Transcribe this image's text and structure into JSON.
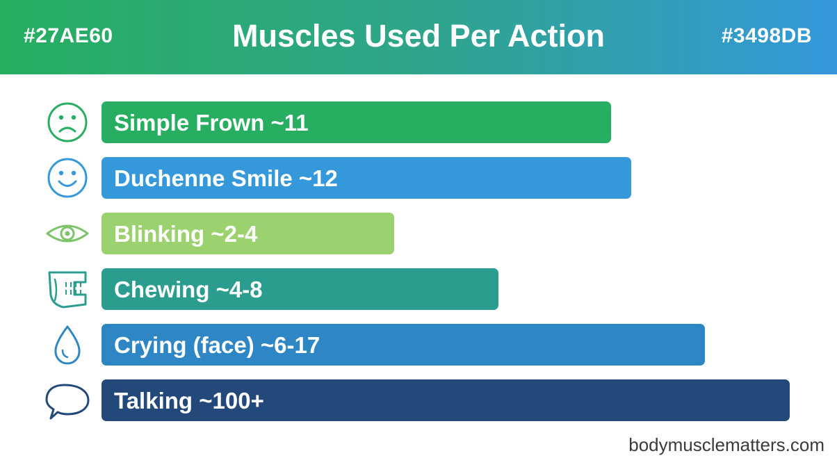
{
  "header": {
    "title": "Muscles Used Per Action",
    "left_label": "#27AE60",
    "right_label": "#3498DB"
  },
  "colors": {
    "green": "#27AE60",
    "blue": "#3498DB",
    "light_green": "#9BD16F",
    "teal": "#2A9D8F",
    "mid_blue": "#2F86C4",
    "navy": "#23497A"
  },
  "chart_data": {
    "type": "bar",
    "orientation": "horizontal",
    "title": "Muscles Used Per Action",
    "categories": [
      "Simple Frown",
      "Duchenne Smile",
      "Blinking",
      "Chewing",
      "Crying (face)",
      "Talking"
    ],
    "bar_labels": [
      "Simple Frown ~11",
      "Duchenne Smile ~12",
      "Blinking ~2-4",
      "Chewing ~4-8",
      "Crying (face) ~6-17",
      "Talking ~100+"
    ],
    "values": [
      11,
      12,
      2,
      4,
      6,
      100
    ],
    "icons": [
      "frown-face-icon",
      "smile-face-icon",
      "eye-icon",
      "jaw-icon",
      "teardrop-icon",
      "speech-bubble-icon"
    ],
    "bar_colors": [
      "#27AE60",
      "#3498DB",
      "#9BD16F",
      "#2A9D8F",
      "#2F86C4",
      "#23497A"
    ],
    "icon_colors": [
      "#27AE60",
      "#3498DB",
      "#7CC36A",
      "#2A9D8F",
      "#2F86C4",
      "#23497A"
    ],
    "grid": false,
    "legend": "none"
  },
  "footer": {
    "website": "bodymusclematters.com"
  }
}
